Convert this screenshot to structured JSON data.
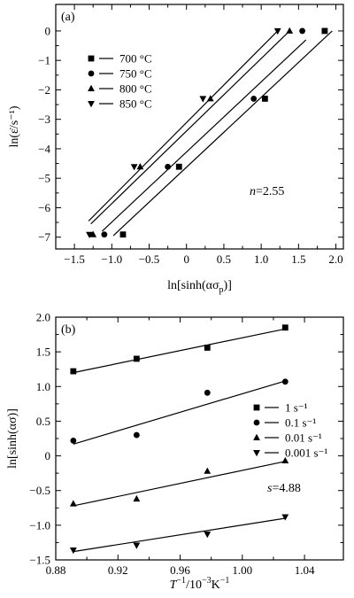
{
  "chart_data": [
    {
      "type": "scatter",
      "panel_label": "(a)",
      "xlabel_main": "ln[sinh(ασ",
      "xlabel_sub": "p",
      "xlabel_end": ")]",
      "ylabel": "ln(ε̇/s⁻¹)",
      "xlim": [
        -1.75,
        2.1
      ],
      "ylim": [
        -7.4,
        0.9
      ],
      "xticks": [
        -1.5,
        -1.0,
        -0.5,
        0,
        0.5,
        1.0,
        1.5,
        2.0
      ],
      "xtick_labels": [
        "−1.5",
        "−1.0",
        "−0.5",
        "0",
        "0.5",
        "1.0",
        "1.5",
        "2.0"
      ],
      "yticks": [
        0,
        -1,
        -2,
        -3,
        -4,
        -5,
        -6,
        -7
      ],
      "ytick_labels": [
        "0",
        "−1",
        "−2",
        "−3",
        "−4",
        "−5",
        "−6",
        "−7"
      ],
      "annotation": "n=2.55",
      "legend_position": "upper-left",
      "series": [
        {
          "name": "700 °C",
          "marker": "square",
          "points": [
            [
              -0.85,
              -6.91
            ],
            [
              -0.1,
              -4.61
            ],
            [
              1.05,
              -2.3
            ],
            [
              1.85,
              0
            ]
          ],
          "fit": [
            [
              -0.98,
              -6.95
            ],
            [
              1.95,
              0.0
            ]
          ]
        },
        {
          "name": "750 °C",
          "marker": "circle",
          "points": [
            [
              -1.1,
              -6.91
            ],
            [
              -0.25,
              -4.61
            ],
            [
              0.9,
              -2.3
            ],
            [
              1.55,
              0
            ]
          ],
          "fit": [
            [
              -1.13,
              -6.8
            ],
            [
              1.6,
              -0.3
            ]
          ]
        },
        {
          "name": "800 °C",
          "marker": "triangle-up",
          "points": [
            [
              -1.25,
              -6.91
            ],
            [
              -0.62,
              -4.61
            ],
            [
              0.32,
              -2.3
            ],
            [
              1.38,
              0
            ]
          ],
          "fit": [
            [
              -1.28,
              -6.55
            ],
            [
              1.38,
              0.0
            ]
          ]
        },
        {
          "name": "850 °C",
          "marker": "triangle-down",
          "points": [
            [
              -1.3,
              -6.91
            ],
            [
              -0.7,
              -4.61
            ],
            [
              0.22,
              -2.3
            ],
            [
              1.22,
              0
            ]
          ],
          "fit": [
            [
              -1.31,
              -6.45
            ],
            [
              1.22,
              0.0
            ]
          ]
        }
      ]
    },
    {
      "type": "scatter",
      "panel_label": "(b)",
      "xlabel_main": "T",
      "xlabel_sup": "−1",
      "xlabel_mid": "/10",
      "xlabel_sup2": "−3",
      "xlabel_unit": "K",
      "xlabel_sup3": "−1",
      "ylabel": "ln[sinh(ασ)]",
      "xlim": [
        0.88,
        1.065
      ],
      "ylim": [
        -1.5,
        2.0
      ],
      "xticks": [
        0.88,
        0.92,
        0.96,
        1.0,
        1.04
      ],
      "xtick_labels": [
        "0.88",
        "0.92",
        "0.96",
        "1.00",
        "1.04"
      ],
      "yticks": [
        2.0,
        1.5,
        1.0,
        0.5,
        0,
        -0.5,
        -1.0,
        -1.5
      ],
      "ytick_labels": [
        "2.0",
        "1.5",
        "1.0",
        "0.5",
        "0",
        "−0.5",
        "−1.0",
        "−1.5"
      ],
      "annotation": "s=4.88",
      "legend_position": "right",
      "series": [
        {
          "name": "1 s⁻¹",
          "marker": "square",
          "points": [
            [
              0.8913,
              1.22
            ],
            [
              0.932,
              1.4
            ],
            [
              0.9775,
              1.56
            ],
            [
              1.0276,
              1.85
            ]
          ],
          "fit": [
            [
              0.8913,
              1.2
            ],
            [
              1.0276,
              1.83
            ]
          ]
        },
        {
          "name": "0.1 s⁻¹",
          "marker": "circle",
          "points": [
            [
              0.8913,
              0.22
            ],
            [
              0.932,
              0.3
            ],
            [
              0.9775,
              0.91
            ],
            [
              1.0276,
              1.07
            ]
          ],
          "fit": [
            [
              0.8913,
              0.17
            ],
            [
              1.0276,
              1.08
            ]
          ]
        },
        {
          "name": "0.01 s⁻¹",
          "marker": "triangle-up",
          "points": [
            [
              0.8913,
              -0.69
            ],
            [
              0.932,
              -0.62
            ],
            [
              0.9775,
              -0.22
            ],
            [
              1.0276,
              -0.07
            ]
          ],
          "fit": [
            [
              0.8913,
              -0.72
            ],
            [
              1.0276,
              -0.08
            ]
          ]
        },
        {
          "name": "0.001 s⁻¹",
          "marker": "triangle-down",
          "points": [
            [
              0.8913,
              -1.36
            ],
            [
              0.932,
              -1.29
            ],
            [
              0.9775,
              -1.13
            ],
            [
              1.0276,
              -0.88
            ]
          ],
          "fit": [
            [
              0.8913,
              -1.38
            ],
            [
              1.0276,
              -0.9
            ]
          ]
        }
      ]
    }
  ]
}
